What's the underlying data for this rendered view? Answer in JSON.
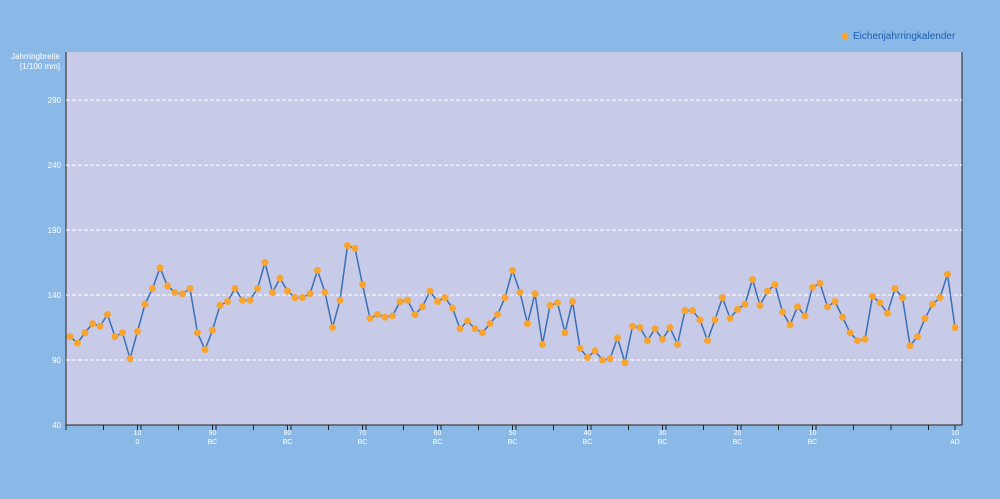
{
  "chart_data": {
    "type": "line",
    "y_label": [
      "Jahrringbreite",
      "[1/100 mm]"
    ],
    "ylim": [
      40,
      327
    ],
    "yticks": [
      40,
      90,
      140,
      190,
      240,
      290
    ],
    "grid": true,
    "legend": "top-right",
    "categories": [
      null,
      null,
      null,
      null,
      null,
      null,
      null,
      null,
      null,
      [
        "10",
        "0"
      ],
      null,
      null,
      null,
      null,
      null,
      null,
      null,
      null,
      null,
      [
        "90",
        "BC"
      ],
      null,
      null,
      null,
      null,
      null,
      null,
      null,
      null,
      null,
      [
        "80",
        "BC"
      ],
      null,
      null,
      null,
      null,
      null,
      null,
      null,
      null,
      null,
      [
        "70",
        "BC"
      ],
      null,
      null,
      null,
      null,
      null,
      null,
      null,
      null,
      null,
      [
        "60",
        "BC"
      ],
      null,
      null,
      null,
      null,
      null,
      null,
      null,
      null,
      null,
      [
        "50",
        "BC"
      ],
      null,
      null,
      null,
      null,
      null,
      null,
      null,
      null,
      null,
      [
        "40",
        "BC"
      ],
      null,
      null,
      null,
      null,
      null,
      null,
      null,
      null,
      null,
      [
        "30",
        "BC"
      ],
      null,
      null,
      null,
      null,
      null,
      null,
      null,
      null,
      null,
      [
        "20",
        "BC"
      ],
      null,
      null,
      null,
      null,
      null,
      null,
      null,
      null,
      null,
      [
        "10",
        "BC"
      ],
      null,
      null,
      null,
      null,
      null,
      null,
      null,
      null,
      null,
      null,
      null,
      null,
      null,
      null,
      null,
      null,
      null,
      null,
      [
        "10",
        "AD"
      ]
    ],
    "series": [
      {
        "name": "Eichenjahrringkalender",
        "color": "#3a6fb5",
        "marker_color": "#f7a530",
        "values": [
          108,
          103,
          111,
          118,
          116,
          125,
          108,
          111,
          91,
          112,
          133,
          145,
          161,
          147,
          142,
          141,
          145,
          111,
          98,
          113,
          132,
          135,
          145,
          136,
          136,
          145,
          165,
          142,
          153,
          143,
          138,
          138,
          141,
          159,
          142,
          115,
          136,
          178,
          176,
          148,
          122,
          125,
          123,
          124,
          135,
          136,
          125,
          131,
          143,
          135,
          138,
          130,
          114,
          120,
          114,
          111,
          118,
          125,
          138,
          159,
          142,
          118,
          141,
          102,
          132,
          134,
          111,
          135,
          99,
          92,
          97,
          90,
          91,
          107,
          88,
          116,
          115,
          105,
          114,
          106,
          115,
          102,
          128,
          128,
          121,
          105,
          121,
          138,
          122,
          129,
          133,
          152,
          132,
          143,
          148,
          127,
          117,
          131,
          124,
          146,
          149,
          131,
          135,
          123,
          111,
          105,
          106,
          139,
          134,
          126,
          145,
          138,
          101,
          108,
          122,
          133,
          138,
          156,
          115
        ]
      }
    ]
  }
}
